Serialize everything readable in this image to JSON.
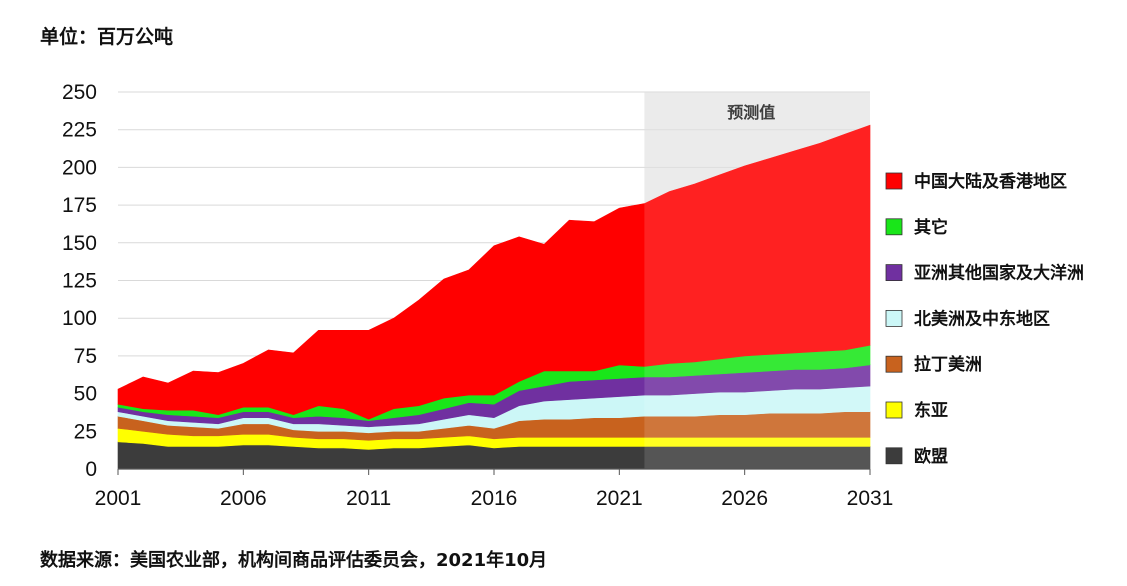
{
  "unit_label": "单位：百万公吨",
  "source": "数据来源：美国农业部，机构间商品评估委员会，2021年10月",
  "forecast_label": "预测值",
  "chart_data": {
    "type": "area",
    "stacked": true,
    "x": [
      2001,
      2002,
      2003,
      2004,
      2005,
      2006,
      2007,
      2008,
      2009,
      2010,
      2011,
      2012,
      2013,
      2014,
      2015,
      2016,
      2017,
      2018,
      2019,
      2020,
      2021,
      2022,
      2023,
      2024,
      2025,
      2026,
      2027,
      2028,
      2029,
      2030,
      2031
    ],
    "x_ticks": [
      "2001",
      "2006",
      "2011",
      "2016",
      "2021",
      "2026",
      "2031"
    ],
    "y_ticks": [
      "0",
      "25",
      "50",
      "75",
      "100",
      "125",
      "150",
      "175",
      "200",
      "225",
      "250"
    ],
    "ylim": [
      0,
      250
    ],
    "forecast_start": 2022,
    "grid": true,
    "legend_position": "right",
    "series": [
      {
        "name": "欧盟",
        "color": "#3c3c3c",
        "values": [
          18,
          17,
          15,
          15,
          15,
          16,
          16,
          15,
          14,
          14,
          13,
          14,
          14,
          15,
          16,
          14,
          15,
          15,
          15,
          15,
          15,
          15,
          15,
          15,
          15,
          15,
          15,
          15,
          15,
          15,
          15
        ]
      },
      {
        "name": "东亚",
        "color": "#ffff00",
        "values": [
          9,
          8,
          8,
          7,
          7,
          7,
          7,
          6,
          6,
          6,
          6,
          6,
          6,
          6,
          6,
          6,
          6,
          6,
          6,
          6,
          6,
          6,
          6,
          6,
          6,
          6,
          6,
          6,
          6,
          6,
          6
        ]
      },
      {
        "name": "拉丁美洲",
        "color": "#c8621e",
        "values": [
          8,
          7,
          6,
          6,
          5,
          7,
          7,
          5,
          5,
          5,
          5,
          5,
          5,
          6,
          7,
          7,
          11,
          12,
          12,
          13,
          13,
          14,
          14,
          14,
          15,
          15,
          16,
          16,
          16,
          17,
          17
        ]
      },
      {
        "name": "北美洲及中东地区",
        "color": "#ccf7f7",
        "values": [
          3,
          3,
          3,
          3,
          3,
          4,
          4,
          4,
          5,
          4,
          4,
          4,
          5,
          6,
          7,
          7,
          10,
          12,
          13,
          13,
          14,
          14,
          14,
          15,
          15,
          15,
          15,
          16,
          16,
          16,
          17
        ]
      },
      {
        "name": "亚洲其他国家及大洋洲",
        "color": "#7030a0",
        "values": [
          3,
          3,
          4,
          4,
          4,
          4,
          4,
          4,
          5,
          5,
          4,
          5,
          6,
          7,
          8,
          9,
          10,
          10,
          12,
          12,
          12,
          12,
          12,
          12,
          12,
          13,
          13,
          13,
          13,
          13,
          14
        ]
      },
      {
        "name": "其它",
        "color": "#19e619",
        "values": [
          2,
          2,
          3,
          4,
          2,
          3,
          3,
          2,
          7,
          6,
          1,
          6,
          6,
          7,
          5,
          6,
          6,
          10,
          7,
          6,
          9,
          7,
          9,
          9,
          10,
          11,
          11,
          11,
          12,
          12,
          13
        ]
      },
      {
        "name": "中国大陆及香港地区",
        "color": "#ff0000",
        "values": [
          10,
          21,
          18,
          26,
          28,
          29,
          38,
          41,
          50,
          52,
          59,
          60,
          70,
          79,
          83,
          99,
          96,
          84,
          100,
          99,
          104,
          108,
          114,
          118,
          122,
          126,
          130,
          134,
          138,
          143,
          146
        ]
      }
    ]
  }
}
